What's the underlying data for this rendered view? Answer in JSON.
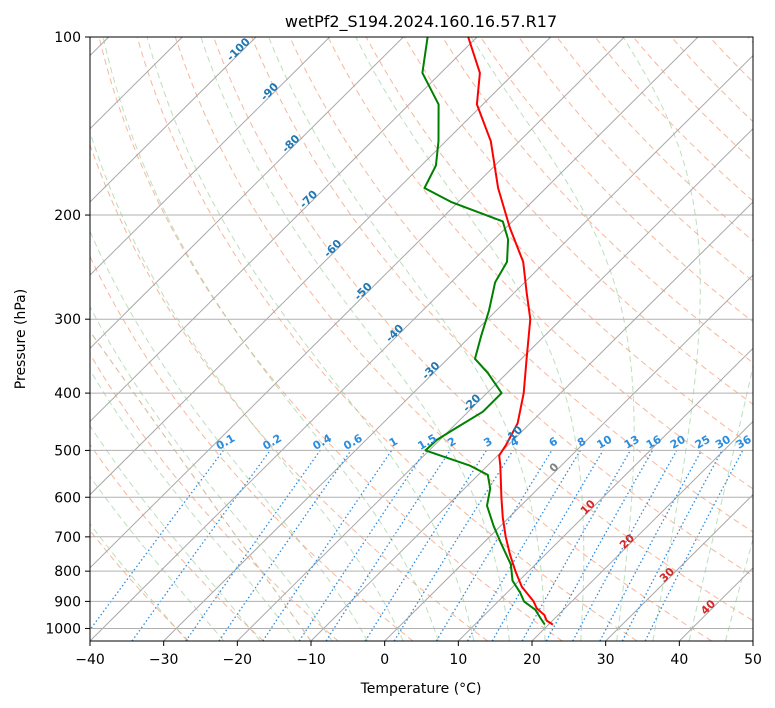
{
  "chart_data": {
    "type": "line",
    "subtype": "skew-t log-p",
    "title": "wetPf2_S194.2024.160.16.57.R17",
    "xlabel": "Temperature (°C)",
    "ylabel": "Pressure (hPa)",
    "xlim": [
      -40,
      50
    ],
    "ylim": [
      1050,
      100
    ],
    "y_scale": "log",
    "x_ticks": [
      "−40",
      "−30",
      "−20",
      "−10",
      "0",
      "10",
      "20",
      "30",
      "40",
      "50"
    ],
    "y_ticks": [
      "100",
      "200",
      "300",
      "400",
      "500",
      "600",
      "700",
      "800",
      "900",
      "1000"
    ],
    "isotherm_labels": [
      "-100",
      "-90",
      "-80",
      "-70",
      "-60",
      "-50",
      "-40",
      "-30",
      "-20",
      "-10",
      "0",
      "10",
      "20",
      "30",
      "40"
    ],
    "mixing_ratio_labels": [
      "0.1",
      "0.2",
      "0.4",
      "0.6",
      "1",
      "1.5",
      "2",
      "3",
      "4",
      "6",
      "8",
      "10",
      "13",
      "16",
      "20",
      "25",
      "30",
      "36"
    ],
    "series": [
      {
        "color": "#ff0000",
        "p": [
          985,
          970,
          950,
          925,
          900,
          850,
          800,
          750,
          700,
          650,
          600,
          560,
          530,
          510,
          490,
          450,
          400,
          350,
          300,
          270,
          240,
          210,
          180,
          150,
          130,
          115,
          100
        ],
        "t": [
          20.6,
          19.2,
          18.2,
          16.2,
          14.8,
          11.2,
          8.2,
          5.2,
          2.2,
          -0.8,
          -3.8,
          -6.3,
          -8.3,
          -9.8,
          -10.3,
          -11.7,
          -15.0,
          -19.3,
          -24.2,
          -28.4,
          -33.0,
          -39.5,
          -46.5,
          -53.9,
          -60.8,
          -64.7,
          -71.2
        ]
      },
      {
        "color": "#008000",
        "p": [
          985,
          960,
          930,
          900,
          870,
          830,
          780,
          720,
          670,
          620,
          580,
          550,
          530,
          500,
          480,
          460,
          430,
          400,
          370,
          350,
          320,
          290,
          260,
          240,
          220,
          205,
          190,
          180,
          165,
          150,
          130,
          115,
          100
        ],
        "t": [
          19.5,
          18.0,
          16.2,
          13.5,
          11.8,
          9.1,
          6.7,
          2.6,
          -1.0,
          -4.6,
          -6.5,
          -8.7,
          -12.5,
          -20.5,
          -20.4,
          -19.5,
          -18.0,
          -18.0,
          -22.6,
          -26.3,
          -28.6,
          -31.0,
          -34.0,
          -35.2,
          -38.1,
          -41.3,
          -51.0,
          -56.5,
          -58.0,
          -61.0,
          -66.0,
          -72.5,
          -76.7
        ]
      }
    ]
  }
}
